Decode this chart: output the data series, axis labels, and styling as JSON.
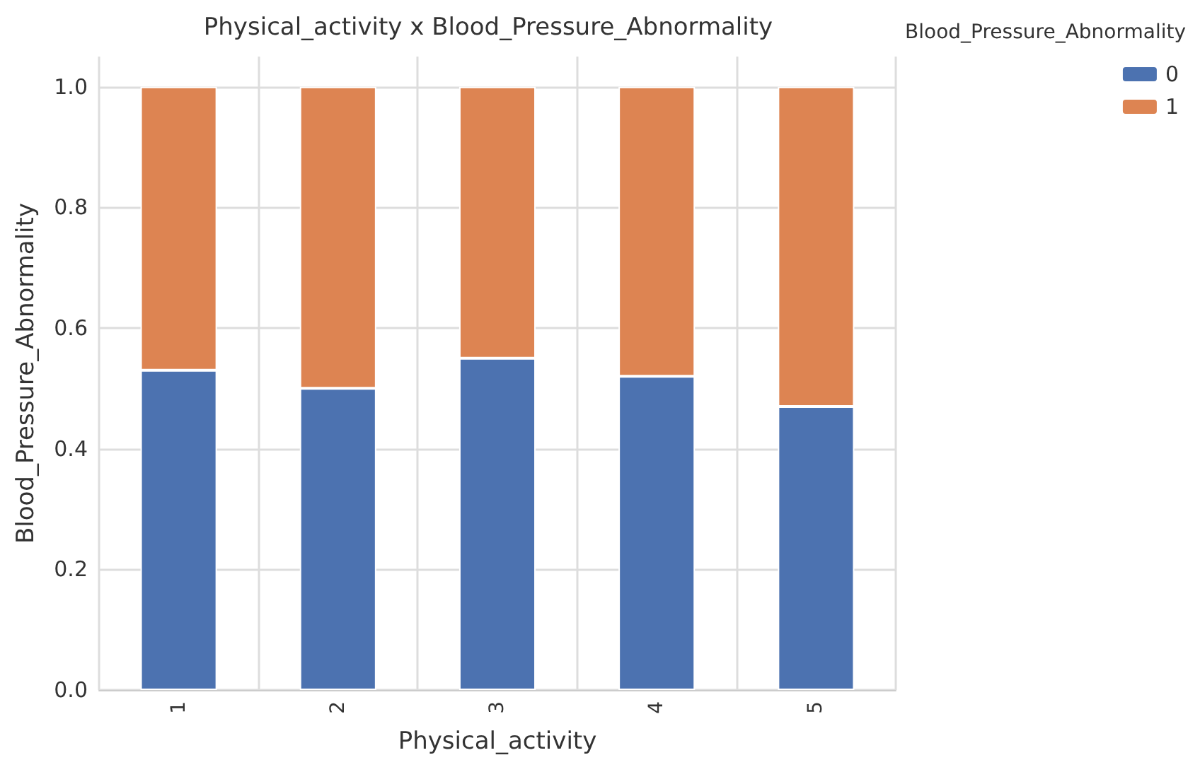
{
  "chart_data": {
    "type": "bar",
    "title": "Physical_activity x Blood_Pressure_Abnormality",
    "xlabel": "Physical_activity",
    "ylabel": "Blood_Pressure_Abnormality",
    "legend_title": "Blood_Pressure_Abnormality",
    "categories": [
      "1",
      "2",
      "3",
      "4",
      "5"
    ],
    "series": [
      {
        "name": "0",
        "color": "#4c72b0",
        "values": [
          0.53,
          0.5,
          0.55,
          0.52,
          0.47
        ]
      },
      {
        "name": "1",
        "color": "#dd8452",
        "values": [
          0.47,
          0.5,
          0.45,
          0.48,
          0.53
        ]
      }
    ],
    "stacked": true,
    "ylim": [
      0,
      1.05
    ],
    "yticks": [
      {
        "value": 0,
        "label": "0.0"
      },
      {
        "value": 0.2,
        "label": "0.2"
      },
      {
        "value": 0.4,
        "label": "0.4"
      },
      {
        "value": 0.6,
        "label": "0.6"
      },
      {
        "value": 0.8,
        "label": "0.8"
      },
      {
        "value": 1,
        "label": "1.0"
      }
    ],
    "grid": true,
    "legend": "top right"
  }
}
